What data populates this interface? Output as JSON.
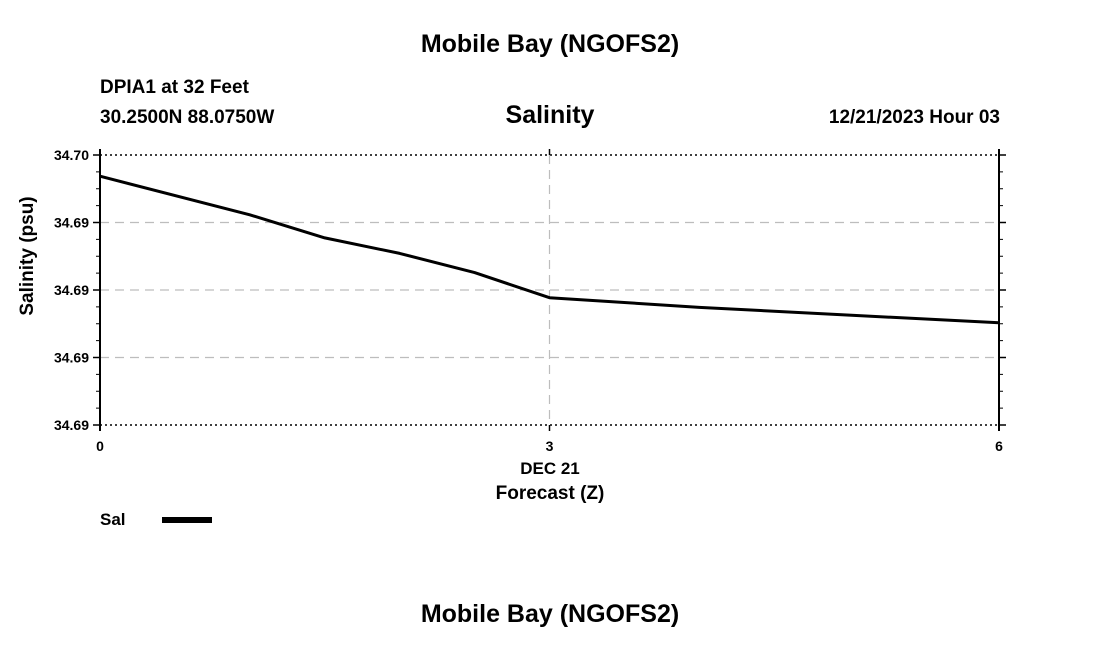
{
  "header": {
    "title": "Mobile Bay (NGOFS2)",
    "station": "DPIA1 at 32 Feet",
    "coords": "30.2500N  88.0750W",
    "chart_title": "Salinity",
    "date_hour": "12/21/2023 Hour 03"
  },
  "footer": {
    "title": "Mobile Bay (NGOFS2)"
  },
  "legend": {
    "label": "Sal"
  },
  "chart_data": {
    "type": "line",
    "title": "Salinity",
    "xlabel": "Forecast (Z)",
    "xdate_label": "DEC 21",
    "ylabel": "Salinity (psu)",
    "xlim": [
      0,
      6
    ],
    "ylim": [
      34.686,
      34.7
    ],
    "x_ticks": [
      0,
      3,
      6
    ],
    "x_tick_labels": [
      "0",
      "3",
      "6"
    ],
    "y_ticks": [
      34.686,
      34.6895,
      34.693,
      34.6965,
      34.7
    ],
    "y_tick_labels": [
      "34.69",
      "34.69",
      "34.69",
      "34.69",
      "34.70"
    ],
    "grid": true,
    "legend_position": "bottom-left",
    "series": [
      {
        "name": "Sal",
        "color": "#000000",
        "x": [
          0,
          1,
          1.5,
          2,
          2.5,
          3,
          4,
          5,
          6
        ],
        "y": [
          34.6989,
          34.6969,
          34.6957,
          34.6949,
          34.6939,
          34.6926,
          34.6921,
          34.6917,
          34.6913
        ]
      }
    ]
  }
}
